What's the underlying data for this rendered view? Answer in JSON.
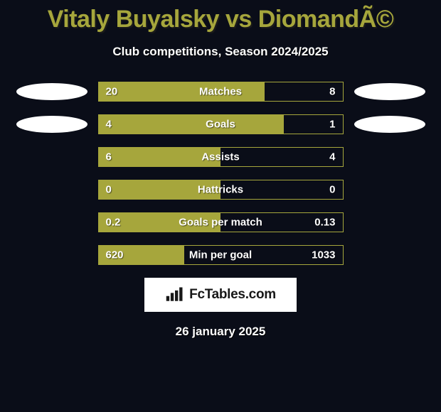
{
  "title": "Vitaly Buyalsky vs DiomandÃ©",
  "subtitle": "Club competitions, Season 2024/2025",
  "date": "26 january 2025",
  "brand": {
    "text": "FcTables.com"
  },
  "colors": {
    "olive": "#a6a63c",
    "oval": "#ffffff",
    "bar_border": "#a6a63c",
    "bg": "#0a0d18"
  },
  "rows": [
    {
      "metric": "Matches",
      "left": "20",
      "right": "8",
      "left_pct": 68,
      "show_ovals": true
    },
    {
      "metric": "Goals",
      "left": "4",
      "right": "1",
      "left_pct": 76,
      "show_ovals": true
    },
    {
      "metric": "Assists",
      "left": "6",
      "right": "4",
      "left_pct": 50,
      "show_ovals": false
    },
    {
      "metric": "Hattricks",
      "left": "0",
      "right": "0",
      "left_pct": 50,
      "show_ovals": false
    },
    {
      "metric": "Goals per match",
      "left": "0.2",
      "right": "0.13",
      "left_pct": 50,
      "show_ovals": false
    },
    {
      "metric": "Min per goal",
      "left": "620",
      "right": "1033",
      "left_pct": 35,
      "show_ovals": false
    }
  ]
}
